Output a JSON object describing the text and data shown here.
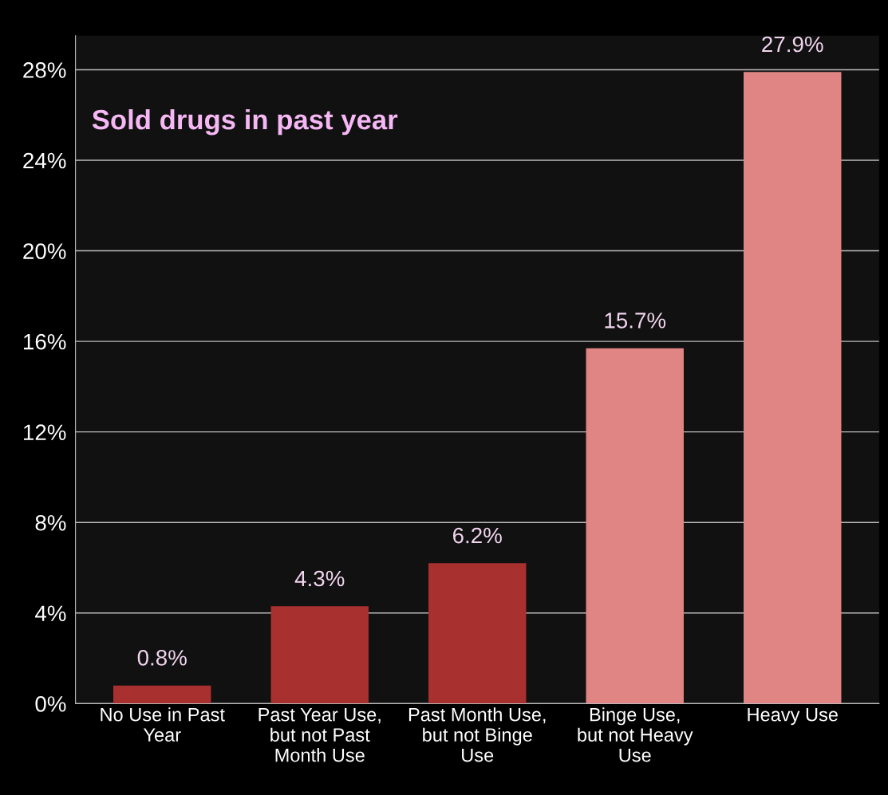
{
  "chart_data": {
    "type": "bar",
    "title": "Sold drugs in past year",
    "categories": [
      "No Use in Past\nYear",
      "Past Year Use,\nbut not Past\nMonth Use",
      "Past Month Use,\nbut not Binge\nUse",
      "Binge Use,\nbut not Heavy\nUse",
      "Heavy Use"
    ],
    "values": [
      0.8,
      4.3,
      6.2,
      15.7,
      27.9
    ],
    "colors": [
      "#a8302e",
      "#a8302e",
      "#a8302e",
      "#e08584",
      "#e08584"
    ],
    "ylim": [
      0,
      29.5
    ],
    "yticks": [
      {
        "value": 0,
        "label": "0%"
      },
      {
        "value": 4,
        "label": "4%"
      },
      {
        "value": 8,
        "label": "8%"
      },
      {
        "value": 12,
        "label": "12%"
      },
      {
        "value": 16,
        "label": "16%"
      },
      {
        "value": 20,
        "label": "20%"
      },
      {
        "value": 24,
        "label": "24%"
      },
      {
        "value": 28,
        "label": "28%"
      }
    ],
    "value_labels": [
      "0.8%",
      "4.3%",
      "6.2%",
      "15.7%",
      "27.9%"
    ],
    "grid": "y"
  }
}
